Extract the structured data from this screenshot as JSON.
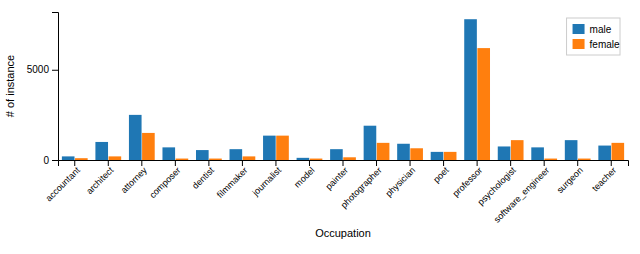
{
  "chart_data": {
    "type": "bar",
    "categories": [
      "accountant",
      "architect",
      "attorney",
      "composer",
      "dentist",
      "filmmaker",
      "journalist",
      "model",
      "painter",
      "photographer",
      "physician",
      "poet",
      "professor",
      "psychologist",
      "software_engineer",
      "surgeon",
      "teacher"
    ],
    "series": [
      {
        "name": "male",
        "color": "#1f77b4",
        "values": [
          200,
          1000,
          2500,
          700,
          550,
          600,
          1350,
          120,
          600,
          1900,
          900,
          450,
          7800,
          750,
          700,
          1100,
          800
        ]
      },
      {
        "name": "female",
        "color": "#ff7f0e",
        "values": [
          100,
          200,
          1500,
          80,
          80,
          200,
          1350,
          80,
          150,
          950,
          650,
          450,
          6200,
          1100,
          80,
          80,
          950
        ]
      }
    ],
    "xlabel": "Occupation",
    "ylabel": "# of instance",
    "ylim": [
      0,
      8200
    ],
    "yticks": [
      0,
      5000
    ],
    "grid": false,
    "legend": "upper right"
  }
}
